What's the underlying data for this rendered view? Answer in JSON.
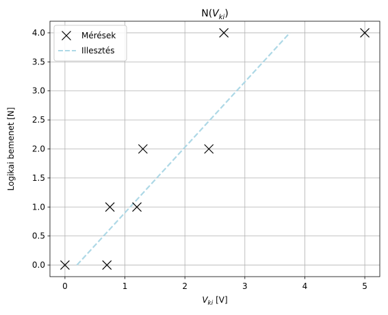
{
  "chart_data": {
    "type": "scatter",
    "title": {
      "main": "N(",
      "var": "V",
      "sub": "ki",
      "close": ")"
    },
    "xlabel": {
      "var": "V",
      "sub": "ki",
      "unit": " [V]"
    },
    "ylabel": "Logikai bemenet [N]",
    "xlim": [
      -0.25,
      5.25
    ],
    "ylim": [
      -0.2,
      4.2
    ],
    "xticks": [
      {
        "value": 0,
        "label": "0"
      },
      {
        "value": 1,
        "label": "1"
      },
      {
        "value": 2,
        "label": "2"
      },
      {
        "value": 3,
        "label": "3"
      },
      {
        "value": 4,
        "label": "4"
      },
      {
        "value": 5,
        "label": "5"
      }
    ],
    "yticks": [
      {
        "value": 0.0,
        "label": "0.0"
      },
      {
        "value": 0.5,
        "label": "0.5"
      },
      {
        "value": 1.0,
        "label": "1.0"
      },
      {
        "value": 1.5,
        "label": "1.5"
      },
      {
        "value": 2.0,
        "label": "2.0"
      },
      {
        "value": 2.5,
        "label": "2.5"
      },
      {
        "value": 3.0,
        "label": "3.0"
      },
      {
        "value": 3.5,
        "label": "3.5"
      },
      {
        "value": 4.0,
        "label": "4.0"
      }
    ],
    "grid": true,
    "legend_position": "top-left",
    "series": [
      {
        "name": "Mérések",
        "kind": "marker-x",
        "color": "#000000",
        "points": [
          {
            "x": 0.0,
            "y": 0
          },
          {
            "x": 0.7,
            "y": 0
          },
          {
            "x": 0.75,
            "y": 1
          },
          {
            "x": 1.2,
            "y": 1
          },
          {
            "x": 1.3,
            "y": 2
          },
          {
            "x": 2.4,
            "y": 2
          },
          {
            "x": 2.65,
            "y": 4
          },
          {
            "x": 5.0,
            "y": 4
          }
        ]
      },
      {
        "name": "Illesztés",
        "kind": "dashed-line",
        "color": "#add8e6",
        "points": [
          {
            "x": 0.2,
            "y": 0.0
          },
          {
            "x": 3.75,
            "y": 4.0
          }
        ]
      }
    ]
  }
}
